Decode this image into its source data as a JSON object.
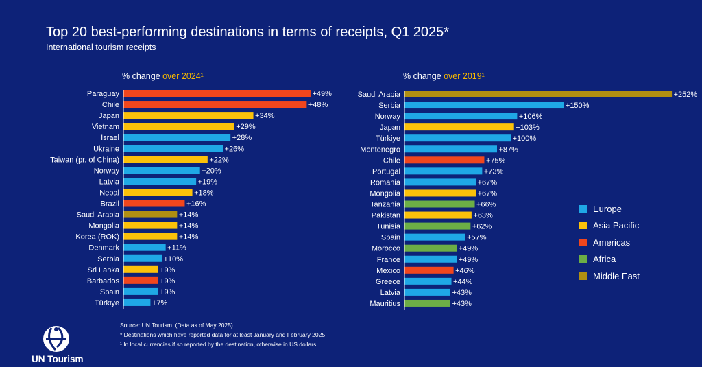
{
  "title": "Top 20 best-performing destinations in terms of receipts, Q1 2025*",
  "subtitle": "International tourism receipts",
  "colors": {
    "Europe": "#1fa8e6",
    "Asia Pacific": "#fbc10a",
    "Americas": "#f1461d",
    "Africa": "#6cae46",
    "Middle East": "#b08f12"
  },
  "chart_data": [
    {
      "type": "bar",
      "orientation": "horizontal",
      "header_prefix": "% change ",
      "header_accent": "over 2024¹",
      "categories": [
        "Paraguay",
        "Chile",
        "Japan",
        "Vietnam",
        "Israel",
        "Ukraine",
        "Taiwan (pr. of China)",
        "Norway",
        "Latvia",
        "Nepal",
        "Brazil",
        "Saudi Arabia",
        "Mongolia",
        "Korea (ROK)",
        "Denmark",
        "Serbia",
        "Sri Lanka",
        "Barbados",
        "Spain",
        "Türkiye"
      ],
      "values": [
        49,
        48,
        34,
        29,
        28,
        26,
        22,
        20,
        19,
        18,
        16,
        14,
        14,
        14,
        11,
        10,
        9,
        9,
        9,
        7
      ],
      "labels": [
        "+49%",
        "+48%",
        "+34%",
        "+29%",
        "+28%",
        "+26%",
        "+22%",
        "+20%",
        "+19%",
        "+18%",
        "+16%",
        "+14%",
        "+14%",
        "+14%",
        "+11%",
        "+10%",
        "+9%",
        "+9%",
        "+9%",
        "+7%"
      ],
      "regions": [
        "Americas",
        "Americas",
        "Asia Pacific",
        "Asia Pacific",
        "Europe",
        "Europe",
        "Asia Pacific",
        "Europe",
        "Europe",
        "Asia Pacific",
        "Americas",
        "Middle East",
        "Asia Pacific",
        "Asia Pacific",
        "Europe",
        "Europe",
        "Asia Pacific",
        "Americas",
        "Europe",
        "Europe"
      ]
    },
    {
      "type": "bar",
      "orientation": "horizontal",
      "header_prefix": "% change ",
      "header_accent": "over 2019¹",
      "categories": [
        "Saudi Arabia",
        "Serbia",
        "Norway",
        "Japan",
        "Türkiye",
        "Montenegro",
        "Chile",
        "Portugal",
        "Romania",
        "Mongolia",
        "Tanzania",
        "Pakistan",
        "Tunisia",
        "Spain",
        "Morocco",
        "France",
        "Mexico",
        "Greece",
        "Latvia",
        "Mauritius"
      ],
      "values": [
        252,
        150,
        106,
        103,
        100,
        87,
        75,
        73,
        67,
        67,
        66,
        63,
        62,
        57,
        49,
        49,
        46,
        44,
        43,
        43
      ],
      "labels": [
        "+252%",
        "+150%",
        "+106%",
        "+103%",
        "+100%",
        "+87%",
        "+75%",
        "+73%",
        "+67%",
        "+67%",
        "+66%",
        "+63%",
        "+62%",
        "+57%",
        "+49%",
        "+49%",
        "+46%",
        "+44%",
        "+43%",
        "+43%"
      ],
      "regions": [
        "Middle East",
        "Europe",
        "Europe",
        "Asia Pacific",
        "Europe",
        "Europe",
        "Americas",
        "Europe",
        "Europe",
        "Asia Pacific",
        "Africa",
        "Asia Pacific",
        "Africa",
        "Europe",
        "Africa",
        "Europe",
        "Americas",
        "Europe",
        "Europe",
        "Africa"
      ]
    }
  ],
  "legend": [
    "Europe",
    "Asia Pacific",
    "Americas",
    "Africa",
    "Middle East"
  ],
  "footnotes": [
    "Source: UN Tourism. (Data as of May 2025)",
    "* Destinations which have reported data for at least January and February 2025",
    "¹ In local currencies if so reported by the destination, otherwise in US dollars."
  ],
  "logo_text": "UN Tourism",
  "logo_icon": "un-tourism-logo-icon"
}
